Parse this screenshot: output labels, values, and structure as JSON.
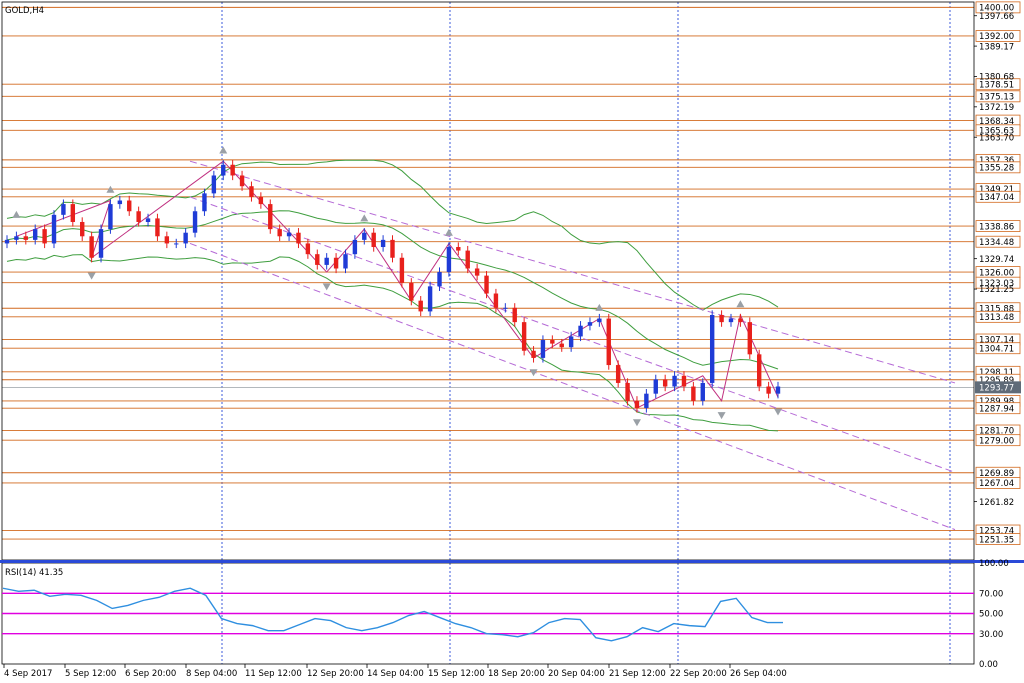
{
  "main": {
    "symbol_label": "GOLD,H4",
    "current_price_label": "1293.77"
  },
  "rsi": {
    "label": "RSI(14) 41.35",
    "levels": [
      70,
      50,
      30
    ],
    "axis_labels": [
      "100.00",
      "70.00",
      "50.00",
      "30.00",
      "0.00"
    ]
  },
  "x_labels": [
    "4 Sep 2017",
    "5 Sep 12:00",
    "6 Sep 20:00",
    "8 Sep 04:00",
    "11 Sep 12:00",
    "12 Sep 20:00",
    "14 Sep 04:00",
    "15 Sep 12:00",
    "18 Sep 20:00",
    "20 Sep 04:00",
    "21 Sep 12:00",
    "22 Sep 20:00",
    "26 Sep 04:00"
  ],
  "price_axis_ticks": [
    "1397.66",
    "1389.17",
    "1380.68",
    "1372.19",
    "1363.70",
    "1329.74",
    "1321.25",
    "1261.82"
  ],
  "level_boxes": [
    "1400.00",
    "1392.00",
    "1378.51",
    "1375.13",
    "1368.34",
    "1365.63",
    "1357.36",
    "1355.28",
    "1349.21",
    "1347.04",
    "1338.86",
    "1334.48",
    "1326.00",
    "1323.03",
    "1315.88",
    "1313.48",
    "1307.14",
    "1304.71",
    "1298.11",
    "1295.89",
    "1289.98",
    "1287.94",
    "1281.70",
    "1279.00",
    "1269.89",
    "1267.04",
    "1253.74",
    "1251.35"
  ],
  "colors": {
    "bull": "#1f3bd6",
    "bear": "#e8201c",
    "level": "#d2691e",
    "band": "#3f9e3f",
    "channel": "#b56ad6",
    "rsi": "#2f8fe0",
    "rsi_level": "#e000e0",
    "separator": "#2a4ad8"
  },
  "chart_data": {
    "type": "line",
    "title": "GOLD,H4",
    "ylim": [
      1245.5,
      1401.5
    ],
    "series": [
      {
        "name": "GOLD,H4",
        "values": [
          1335,
          1336,
          1335,
          1338,
          1334,
          1342,
          1345,
          1340,
          1336,
          1330,
          1338,
          1345,
          1346,
          1343,
          1340,
          1341,
          1336,
          1334,
          1334,
          1337,
          1343,
          1348,
          1353,
          1356,
          1353,
          1350,
          1347,
          1345,
          1338,
          1336,
          1337,
          1334,
          1331,
          1328,
          1330,
          1327,
          1331,
          1335,
          1337,
          1333,
          1335,
          1330,
          1323,
          1318,
          1315,
          1322,
          1326,
          1333,
          1332,
          1327,
          1325,
          1320,
          1316,
          1316,
          1312,
          1304,
          1302,
          1307,
          1306,
          1305,
          1308,
          1311,
          1312,
          1313,
          1300,
          1295,
          1290,
          1288,
          1292,
          1296,
          1294,
          1297,
          1294,
          1290,
          1295,
          1314,
          1312,
          1313,
          1312,
          1303,
          1294,
          1292,
          1294
        ]
      },
      {
        "name": "RSI(14)",
        "values": [
          75,
          72,
          73,
          67,
          69,
          68,
          63,
          55,
          58,
          63,
          66,
          72,
          75,
          68,
          45,
          40,
          38,
          33,
          33,
          39,
          45,
          43,
          36,
          33,
          36,
          41,
          48,
          52,
          46,
          40,
          36,
          30,
          29,
          27,
          31,
          41,
          45,
          44,
          26,
          23,
          27,
          36,
          32,
          40,
          38,
          37,
          62,
          65,
          46,
          41,
          41
        ]
      }
    ]
  }
}
